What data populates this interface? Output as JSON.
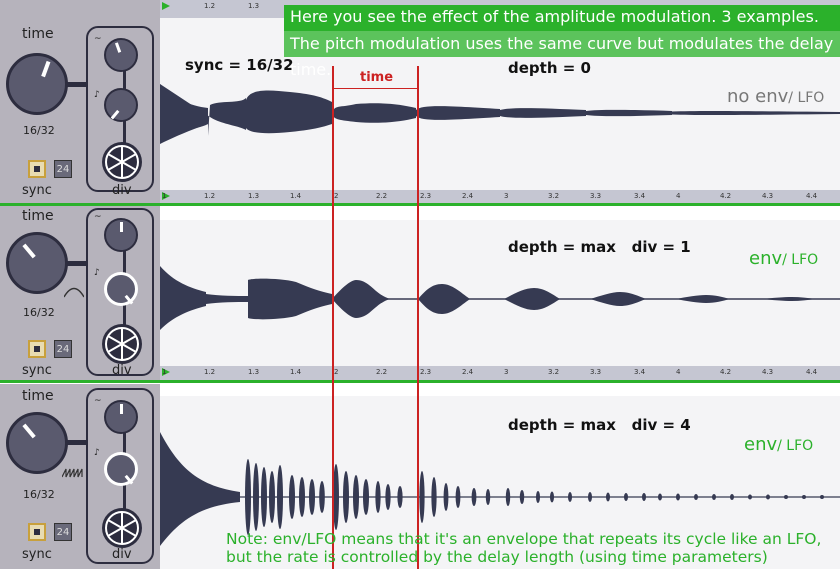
{
  "tracks": [
    {
      "time_label": "time",
      "rate_label": "16/32",
      "sync_label": "sync",
      "num_label": "24",
      "div_label": "div"
    },
    {
      "time_label": "time",
      "rate_label": "16/32",
      "sync_label": "sync",
      "num_label": "24",
      "div_label": "div"
    },
    {
      "time_label": "time",
      "rate_label": "16/32",
      "sync_label": "sync",
      "num_label": "24",
      "div_label": "div"
    }
  ],
  "info": {
    "line1": "Here you see the effect of the amplitude modulation. 3 examples.",
    "line2": "The pitch modulation uses the same curve but modulates the delay time."
  },
  "annotations": {
    "sync": "sync = 16/32",
    "time": "time",
    "depth0": "depth = 0",
    "depth1": "depth = max   div = 1",
    "depth4": "depth = max   div = 4",
    "noenv_main": "no env",
    "noenv_sub": "/ LFO",
    "env_main": "env",
    "env_sub": "/ LFO"
  },
  "ruler_ticks": [
    "1",
    "1.2",
    "1.3",
    "1.4",
    "2",
    "2.2",
    "2.3",
    "2.4",
    "3",
    "3.2",
    "3.3",
    "3.4",
    "4",
    "4.2",
    "4.3",
    "4.4"
  ],
  "note": {
    "line1": "Note: env/LFO means that it's an envelope that repeats its cycle like an LFO,",
    "line2": "but the rate is controlled by the delay length (using time parameters)"
  },
  "colors": {
    "accent": "#2bb12b",
    "wave": "#363a52",
    "red": "#cc2222"
  }
}
